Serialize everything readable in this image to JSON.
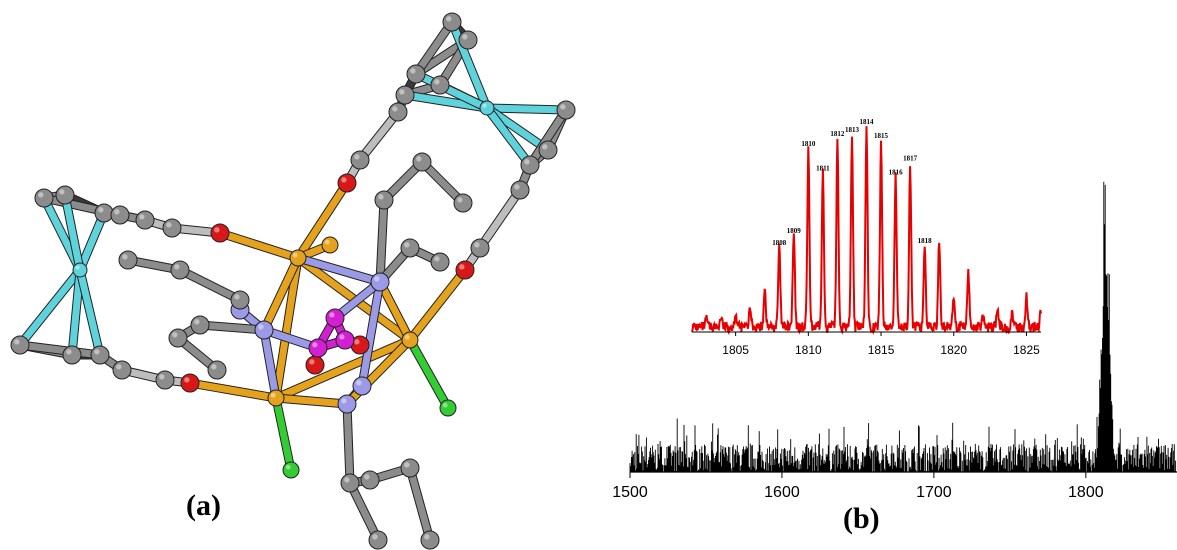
{
  "panels": {
    "a_label": "(a)",
    "b_label": "(b)"
  },
  "molecule": {
    "description_free": true,
    "atom_colors": {
      "carbon": "#8c8c8c",
      "carbon_dark": "#3a3a3a",
      "iron": "#5fd3dc",
      "metal": "#e5a21c",
      "nitrogen": "#9a9ae6",
      "oxygen": "#d81818",
      "chlorine": "#33cc33",
      "bridge": "#d21fd2",
      "bond_light": "#bdbdbd"
    }
  },
  "chart_data": [
    {
      "type": "line",
      "role": "full-spectrum",
      "title": "",
      "xlabel": "",
      "ylabel": "",
      "xlim": [
        1500,
        1860
      ],
      "x_ticks": [
        1500,
        1600,
        1700,
        1800
      ],
      "noise_level": 0.18,
      "cluster_center": 1813,
      "cluster_peak": 1.0,
      "color": "#000000",
      "grid": false
    },
    {
      "type": "line",
      "role": "isotope-inset",
      "title": "",
      "xlabel": "",
      "ylabel": "",
      "xlim": [
        1802,
        1826
      ],
      "x_ticks": [
        1805,
        1810,
        1815,
        1820,
        1825
      ],
      "color": "#e60000",
      "grid": false,
      "peaks": [
        {
          "x": 1803,
          "y": 0.04
        },
        {
          "x": 1804,
          "y": 0.05
        },
        {
          "x": 1805,
          "y": 0.07
        },
        {
          "x": 1806,
          "y": 0.09
        },
        {
          "x": 1807,
          "y": 0.19
        },
        {
          "x": 1808,
          "y": 0.4,
          "label": "1808"
        },
        {
          "x": 1809,
          "y": 0.46,
          "label": "1809"
        },
        {
          "x": 1810,
          "y": 0.89,
          "label": "1810"
        },
        {
          "x": 1811,
          "y": 0.77,
          "label": "1811"
        },
        {
          "x": 1812,
          "y": 0.94,
          "label": "1812"
        },
        {
          "x": 1813,
          "y": 0.96,
          "label": "1813"
        },
        {
          "x": 1814,
          "y": 1.0,
          "label": "1814"
        },
        {
          "x": 1815,
          "y": 0.93,
          "label": "1815"
        },
        {
          "x": 1816,
          "y": 0.75,
          "label": "1816"
        },
        {
          "x": 1817,
          "y": 0.82,
          "label": "1817"
        },
        {
          "x": 1818,
          "y": 0.41,
          "label": "1818"
        },
        {
          "x": 1819,
          "y": 0.43
        },
        {
          "x": 1820,
          "y": 0.16
        },
        {
          "x": 1821,
          "y": 0.27
        },
        {
          "x": 1822,
          "y": 0.06
        },
        {
          "x": 1823,
          "y": 0.08
        },
        {
          "x": 1824,
          "y": 0.06
        },
        {
          "x": 1825,
          "y": 0.15
        },
        {
          "x": 1826,
          "y": 0.08
        }
      ]
    }
  ]
}
